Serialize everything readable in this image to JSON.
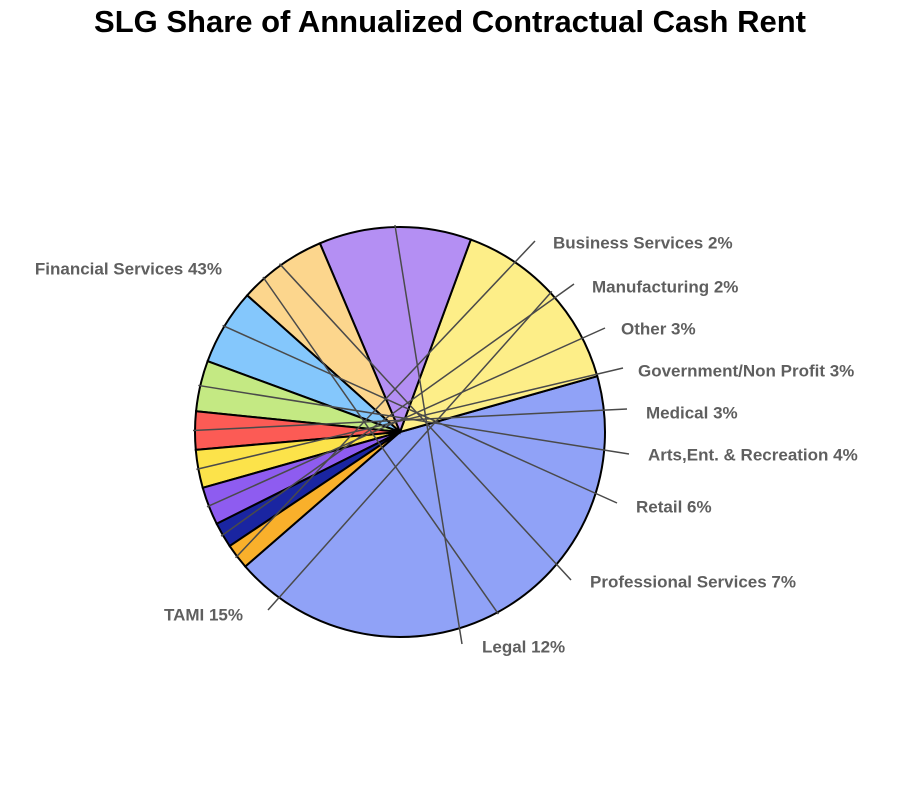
{
  "chart_data": {
    "type": "pie",
    "title": "SLG Share of Annualized Contractual Cash Rent",
    "slices": [
      {
        "label": "Financial Services 43%",
        "value": 43,
        "color": "#90a2f7"
      },
      {
        "label": "TAMI 15%",
        "value": 15,
        "color": "#fdee88"
      },
      {
        "label": "Legal 12%",
        "value": 12,
        "color": "#b48ff3"
      },
      {
        "label": "Professional Services 7%",
        "value": 7,
        "color": "#fcd68d"
      },
      {
        "label": "Retail 6%",
        "value": 6,
        "color": "#84c7fc"
      },
      {
        "label": "Arts,Ent. & Recreation 4%",
        "value": 4,
        "color": "#c4e983"
      },
      {
        "label": "Medical 3%",
        "value": 3,
        "color": "#fc5b55"
      },
      {
        "label": "Government/Non Profit 3%",
        "value": 3,
        "color": "#fce34a"
      },
      {
        "label": "Other 3%",
        "value": 3,
        "color": "#8e5cf0"
      },
      {
        "label": "Manufacturing 2%",
        "value": 2,
        "color": "#1a25a1"
      },
      {
        "label": "Business Services 2%",
        "value": 2,
        "color": "#f9b02b"
      }
    ]
  }
}
